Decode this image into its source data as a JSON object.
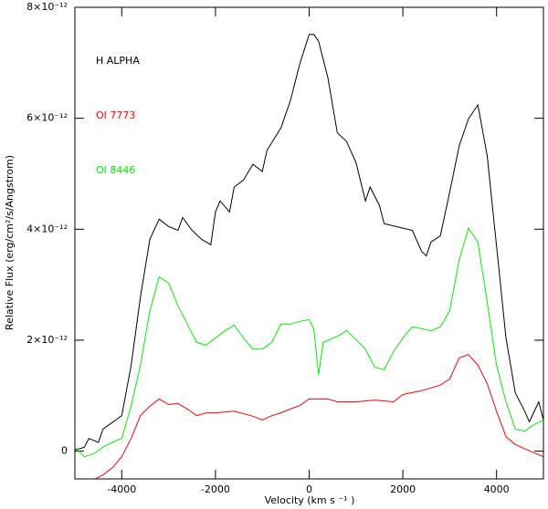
{
  "chart_data": {
    "type": "line",
    "xlabel": "Velocity (km s ⁻¹ )",
    "ylabel": "Relative Flux (erg/cm²/s/Angstrom)",
    "xlim": [
      -5000,
      5000
    ],
    "ylim": [
      -5e-13,
      8e-12
    ],
    "xticks": [
      -4000,
      -2000,
      0,
      2000,
      4000
    ],
    "yticks": [
      0,
      {
        "value": 2e-12,
        "label": "2×10⁻¹²"
      },
      {
        "value": 4e-12,
        "label": "4×10⁻¹²"
      },
      {
        "value": 6e-12,
        "label": "6×10⁻¹²"
      },
      {
        "value": 8e-12,
        "label": "8×10⁻¹²"
      }
    ],
    "series": [
      {
        "name": "H ALPHA",
        "color": "#000000",
        "x": [
          -5000,
          -4800,
          -4700,
          -4500,
          -4400,
          -4000,
          -3800,
          -3600,
          -3400,
          -3200,
          -3000,
          -2800,
          -2700,
          -2500,
          -2300,
          -2100,
          -2000,
          -1900,
          -1700,
          -1600,
          -1400,
          -1200,
          -1000,
          -900,
          -600,
          -400,
          -200,
          0,
          100,
          200,
          400,
          600,
          800,
          1000,
          1200,
          1300,
          1500,
          1600,
          2000,
          2200,
          2400,
          2500,
          2600,
          2800,
          3000,
          3200,
          3400,
          3600,
          3800,
          4000,
          4200,
          4400,
          4600,
          4700,
          4900,
          5000
        ],
        "values": [
          2e-14,
          7e-14,
          2.3e-13,
          1.6e-13,
          4e-13,
          6.4e-13,
          1.55e-12,
          2.78e-12,
          3.82e-12,
          4.18e-12,
          4.05e-12,
          3.98e-12,
          4.21e-12,
          3.98e-12,
          3.82e-12,
          3.72e-12,
          4.31e-12,
          4.51e-12,
          4.31e-12,
          4.76e-12,
          4.89e-12,
          5.17e-12,
          5.04e-12,
          5.42e-12,
          5.83e-12,
          6.32e-12,
          6.98e-12,
          7.51e-12,
          7.51e-12,
          7.39e-12,
          6.73e-12,
          5.74e-12,
          5.58e-12,
          5.2e-12,
          4.51e-12,
          4.76e-12,
          4.43e-12,
          4.1e-12,
          4.02e-12,
          3.98e-12,
          3.6e-12,
          3.52e-12,
          3.77e-12,
          3.88e-12,
          4.67e-12,
          5.5e-12,
          5.99e-12,
          6.24e-12,
          5.33e-12,
          3.69e-12,
          2.04e-12,
          1.05e-12,
          7.2e-13,
          5.3e-13,
          8.9e-13,
          5.6e-13
        ]
      },
      {
        "name": "OI 7773",
        "color": "#ff0000",
        "x": [
          -4600,
          -4400,
          -4200,
          -4000,
          -3800,
          -3600,
          -3400,
          -3200,
          -3000,
          -2800,
          -2600,
          -2400,
          -2200,
          -2000,
          -1600,
          -1200,
          -1000,
          -800,
          -600,
          -400,
          -200,
          0,
          400,
          600,
          1000,
          1400,
          1800,
          2000,
          2400,
          2800,
          3000,
          3200,
          3400,
          3600,
          3800,
          4000,
          4200,
          4400,
          4800,
          5000
        ],
        "values": [
          -5.1e-13,
          -4.3e-13,
          -3e-13,
          -1e-13,
          2.3e-13,
          6.4e-13,
          8.1e-13,
          9.4e-13,
          8.4e-13,
          8.6e-13,
          7.6e-13,
          6.4e-13,
          6.9e-13,
          6.9e-13,
          7.2e-13,
          6.3e-13,
          5.6e-13,
          6.4e-13,
          6.9e-13,
          7.6e-13,
          8.2e-13,
          9.4e-13,
          9.4e-13,
          8.9e-13,
          8.9e-13,
          9.2e-13,
          8.9e-13,
          1.02e-12,
          1.09e-12,
          1.19e-12,
          1.3e-12,
          1.68e-12,
          1.74e-12,
          1.55e-12,
          1.22e-12,
          7.2e-13,
          2.6e-13,
          1.2e-13,
          -3e-14,
          -1e-13
        ]
      },
      {
        "name": "OI 8446",
        "color": "#00ee00",
        "x": [
          -5000,
          -4800,
          -4600,
          -4400,
          -4200,
          -4000,
          -3800,
          -3600,
          -3400,
          -3200,
          -3000,
          -2800,
          -2600,
          -2400,
          -2200,
          -2000,
          -1800,
          -1600,
          -1400,
          -1200,
          -1000,
          -800,
          -600,
          -400,
          -200,
          0,
          100,
          200,
          300,
          600,
          800,
          1000,
          1200,
          1400,
          1600,
          1800,
          2000,
          2200,
          2400,
          2600,
          2800,
          3000,
          3200,
          3400,
          3600,
          3800,
          4000,
          4200,
          4400,
          4600,
          4800,
          5000
        ],
        "values": [
          7e-14,
          -1e-13,
          -5e-14,
          7e-14,
          1.6e-13,
          2.3e-13,
          8.1e-13,
          1.55e-12,
          2.53e-12,
          3.14e-12,
          3.03e-12,
          2.62e-12,
          2.29e-12,
          1.96e-12,
          1.91e-12,
          2.04e-12,
          2.17e-12,
          2.27e-12,
          2.04e-12,
          1.84e-12,
          1.84e-12,
          1.96e-12,
          2.29e-12,
          2.29e-12,
          2.34e-12,
          2.37e-12,
          2.21e-12,
          1.38e-12,
          1.96e-12,
          2.07e-12,
          2.17e-12,
          2.01e-12,
          1.84e-12,
          1.51e-12,
          1.47e-12,
          1.79e-12,
          2.04e-12,
          2.24e-12,
          2.21e-12,
          2.17e-12,
          2.24e-12,
          2.53e-12,
          3.44e-12,
          4.02e-12,
          3.77e-12,
          2.7e-12,
          1.55e-12,
          8.9e-13,
          4e-13,
          3.6e-13,
          4.8e-13,
          5.6e-13
        ]
      }
    ]
  }
}
